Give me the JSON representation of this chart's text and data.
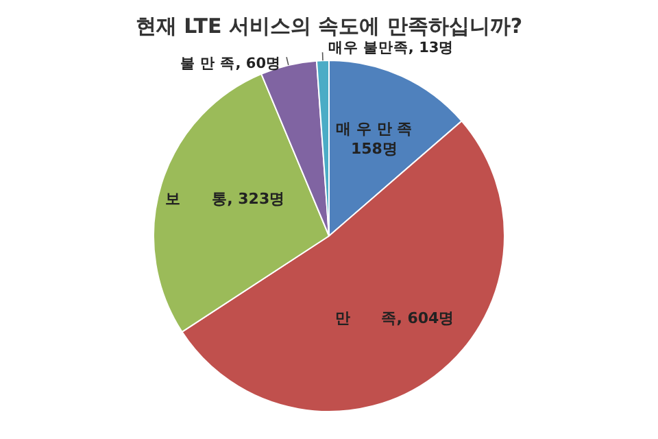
{
  "chart_data": {
    "type": "pie",
    "title": "현재 LTE 서비스의 속도에 만족하십니까?",
    "categories": [
      "매 우 만 족",
      "만      족",
      "보      통",
      "불 만 족",
      "매우 불만족"
    ],
    "values": [
      158,
      604,
      323,
      60,
      13
    ],
    "value_labels": [
      "158명",
      "604명",
      "323명",
      "60명",
      "13명"
    ],
    "colors": [
      "#4f81bd",
      "#c0504d",
      "#9bbb59",
      "#8064a2",
      "#4bacc6"
    ]
  }
}
